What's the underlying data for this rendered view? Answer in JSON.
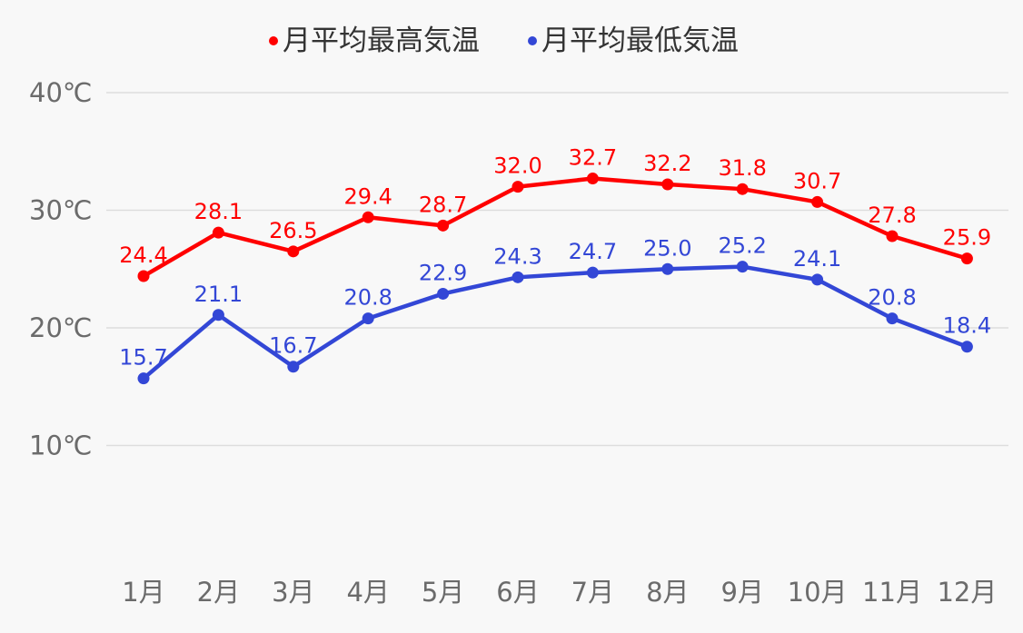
{
  "chart_data": {
    "type": "line",
    "title": "",
    "xlabel": "",
    "ylabel": "",
    "categories": [
      "1月",
      "2月",
      "3月",
      "4月",
      "5月",
      "6月",
      "7月",
      "8月",
      "9月",
      "10月",
      "11月",
      "12月"
    ],
    "yticks": [
      10,
      20,
      30,
      40
    ],
    "ytick_labels": [
      "10℃",
      "20℃",
      "30℃",
      "40℃"
    ],
    "ylim": [
      0,
      40
    ],
    "grid": true,
    "legend_position": "top-center",
    "series": [
      {
        "name": "月平均最高気温",
        "color": "#ff0000",
        "values": [
          24.4,
          28.1,
          26.5,
          29.4,
          28.7,
          32.0,
          32.7,
          32.2,
          31.8,
          30.7,
          27.8,
          25.9
        ],
        "labels": [
          "24.4",
          "28.1",
          "26.5",
          "29.4",
          "28.7",
          "32.0",
          "32.7",
          "32.2",
          "31.8",
          "30.7",
          "27.8",
          "25.9"
        ]
      },
      {
        "name": "月平均最低気温",
        "color": "#3347d6",
        "values": [
          15.7,
          21.1,
          16.7,
          20.8,
          22.9,
          24.3,
          24.7,
          25.0,
          25.2,
          24.1,
          20.8,
          18.4
        ],
        "labels": [
          "15.7",
          "21.1",
          "16.7",
          "20.8",
          "22.9",
          "24.3",
          "24.7",
          "25.0",
          "25.2",
          "24.1",
          "20.8",
          "18.4"
        ]
      }
    ]
  }
}
